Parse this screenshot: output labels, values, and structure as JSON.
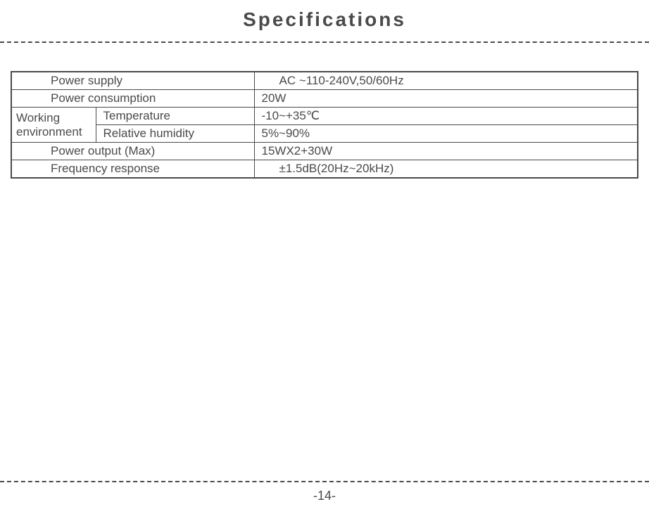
{
  "title": "Specifications",
  "table": {
    "rows": {
      "power_supply": {
        "label": "Power supply",
        "value": "AC ~110-240V,50/60Hz"
      },
      "power_consumption": {
        "label": "Power consumption",
        "value": "20W"
      },
      "working_env": {
        "group_label": "Working environment",
        "temperature": {
          "label": "Temperature",
          "value": "-10~+35℃"
        },
        "humidity": {
          "label": "Relative humidity",
          "value": "5%~90%"
        }
      },
      "power_output": {
        "label": "Power output (Max)",
        "value": "15WX2+30W"
      },
      "frequency_response": {
        "label": "Frequency response",
        "value": "±1.5dB(20Hz~20kHz)"
      }
    }
  },
  "page_number": "-14-",
  "styling": {
    "text_color": "#4a4a4a",
    "background_color": "#ffffff",
    "title_fontsize": 28,
    "title_letter_spacing": 3,
    "table_fontsize": 17,
    "border_color": "#4a4a4a",
    "outer_border_width": 2,
    "inner_border_width": 1,
    "dash_border_width": 2
  }
}
